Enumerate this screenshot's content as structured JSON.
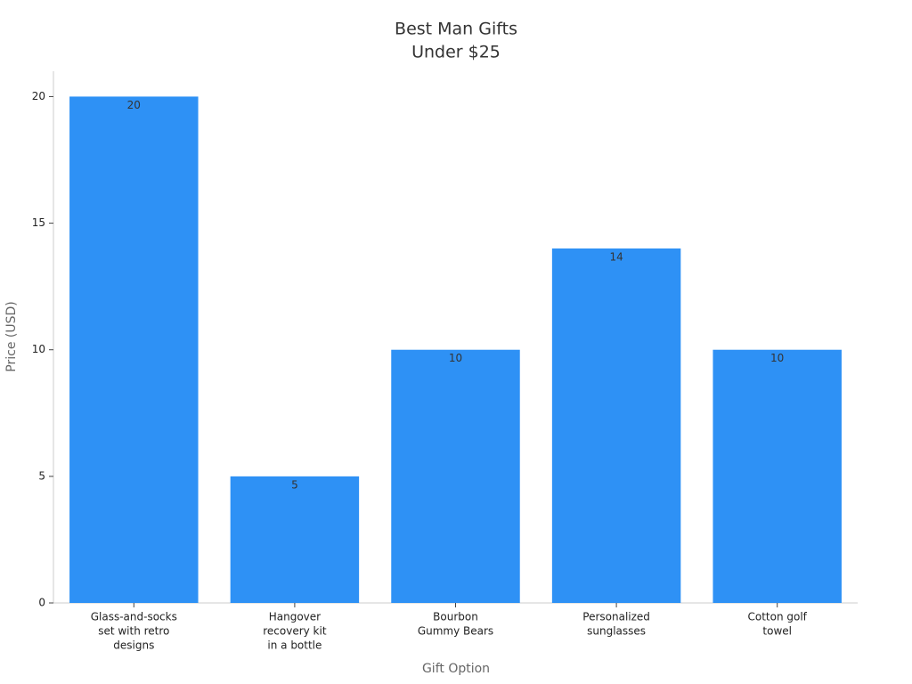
{
  "chart_data": {
    "type": "bar",
    "title": [
      "Best Man Gifts",
      "Under $25"
    ],
    "x_label": "Gift Option",
    "y_label": "Price (USD)",
    "categories": [
      [
        "Glass-and-socks",
        "set with retro",
        "designs"
      ],
      [
        "Hangover",
        "recovery kit",
        "in a bottle"
      ],
      [
        "Bourbon",
        "Gummy Bears"
      ],
      [
        "Personalized",
        "sunglasses"
      ],
      [
        "Cotton golf",
        "towel"
      ]
    ],
    "values": [
      20,
      5,
      10,
      14,
      10
    ],
    "color": "#2e91f5",
    "ylim": [
      0,
      21
    ],
    "yticks": [
      0,
      5,
      10,
      15,
      20
    ],
    "grid": false,
    "show_value_labels": true
  }
}
